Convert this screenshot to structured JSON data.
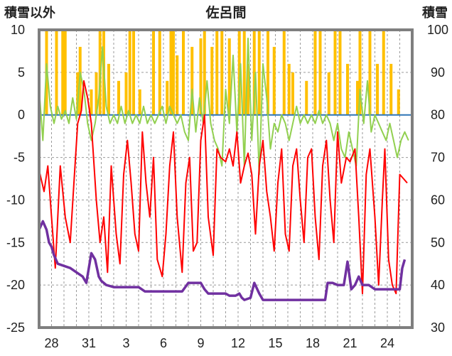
{
  "chart_data": {
    "type": "line",
    "title": "佐呂間",
    "left_axis_title": "積雪以外",
    "right_axis_title": "積雪",
    "yleft": {
      "min": -25,
      "max": 10,
      "ticks": [
        "10",
        "5",
        "0",
        "-5",
        "-10",
        "-15",
        "-20",
        "-25"
      ]
    },
    "yright": {
      "min": 30,
      "max": 100,
      "ticks": [
        "100",
        "90",
        "80",
        "70",
        "60",
        "50",
        "40",
        "30"
      ]
    },
    "x_tick_labels": [
      "28",
      "31",
      "3",
      "6",
      "9",
      "12",
      "15",
      "18",
      "21",
      "24"
    ],
    "x_ticks_day_index": [
      1,
      4,
      7,
      10,
      13,
      16,
      19,
      22,
      25,
      28
    ],
    "days": 30,
    "grid": true,
    "colors": {
      "temperature": "#ff0000",
      "wind": "#92d050",
      "precipitation": "#ffc000",
      "snow_depth": "#7030a0",
      "frame": "#7f7f7f"
    },
    "series": [
      {
        "key": "temperature",
        "axis": "left",
        "points": [
          [
            0,
            -6.5
          ],
          [
            0.4,
            -9
          ],
          [
            0.7,
            -6
          ],
          [
            1.0,
            -12
          ],
          [
            1.3,
            -18
          ],
          [
            1.7,
            -6
          ],
          [
            2.1,
            -12
          ],
          [
            2.5,
            -15
          ],
          [
            2.8,
            -8
          ],
          [
            3.1,
            -1
          ],
          [
            3.4,
            0.5
          ],
          [
            3.6,
            4
          ],
          [
            3.9,
            2
          ],
          [
            4.2,
            -1
          ],
          [
            4.6,
            -10
          ],
          [
            4.9,
            -15
          ],
          [
            5.2,
            -12
          ],
          [
            5.5,
            -18.5
          ],
          [
            5.8,
            -6
          ],
          [
            6.2,
            -14
          ],
          [
            6.5,
            -17.5
          ],
          [
            6.8,
            -7
          ],
          [
            7.1,
            -3
          ],
          [
            7.4,
            -8
          ],
          [
            7.7,
            -14
          ],
          [
            8.0,
            -16
          ],
          [
            8.3,
            -2
          ],
          [
            8.6,
            -8
          ],
          [
            8.9,
            -12
          ],
          [
            9.2,
            -5
          ],
          [
            9.5,
            -17
          ],
          [
            9.9,
            -19
          ],
          [
            10.2,
            -14
          ],
          [
            10.5,
            -6
          ],
          [
            10.8,
            -2
          ],
          [
            11.1,
            -12
          ],
          [
            11.5,
            -18.5
          ],
          [
            11.8,
            -8
          ],
          [
            12.1,
            -5
          ],
          [
            12.4,
            -16
          ],
          [
            12.7,
            -15
          ],
          [
            13.0,
            -3
          ],
          [
            13.3,
            0
          ],
          [
            13.6,
            -12
          ],
          [
            14.0,
            -16.5
          ],
          [
            14.3,
            -4
          ],
          [
            14.6,
            -5
          ],
          [
            15.0,
            -5.5
          ],
          [
            15.3,
            -4
          ],
          [
            15.6,
            -6
          ],
          [
            15.9,
            -2
          ],
          [
            16.2,
            -8
          ],
          [
            16.5,
            -6
          ],
          [
            16.8,
            -4.5
          ],
          [
            17.1,
            -7
          ],
          [
            17.4,
            -14
          ],
          [
            17.7,
            -6
          ],
          [
            18.0,
            -3
          ],
          [
            18.3,
            -9
          ],
          [
            18.6,
            -12
          ],
          [
            18.9,
            -16
          ],
          [
            19.2,
            -8
          ],
          [
            19.5,
            -4
          ],
          [
            19.8,
            -14
          ],
          [
            20.1,
            -16
          ],
          [
            20.4,
            -6
          ],
          [
            20.7,
            -4
          ],
          [
            21.0,
            -10
          ],
          [
            21.3,
            -15
          ],
          [
            21.6,
            -5
          ],
          [
            21.9,
            -4
          ],
          [
            22.2,
            -12
          ],
          [
            22.5,
            -17
          ],
          [
            22.8,
            -6
          ],
          [
            23.1,
            -3
          ],
          [
            23.4,
            -10
          ],
          [
            23.7,
            -15
          ],
          [
            24.0,
            -2
          ],
          [
            24.3,
            -8
          ],
          [
            24.7,
            -5
          ],
          [
            25.0,
            -5.5
          ],
          [
            25.4,
            -4
          ],
          [
            25.7,
            -12
          ],
          [
            26.0,
            -21
          ],
          [
            26.3,
            -7
          ],
          [
            26.6,
            -4
          ],
          [
            27.0,
            -12
          ],
          [
            27.3,
            -20
          ],
          [
            27.6,
            -10
          ],
          [
            27.8,
            -4
          ],
          [
            28.1,
            -17
          ],
          [
            28.4,
            -20
          ],
          [
            28.7,
            -21
          ],
          [
            29.0,
            -7
          ],
          [
            29.3,
            -7.5
          ],
          [
            29.6,
            -8
          ]
        ]
      },
      {
        "key": "wind",
        "axis": "left",
        "points": [
          [
            0,
            3
          ],
          [
            0.3,
            -3
          ],
          [
            0.6,
            6
          ],
          [
            0.9,
            1
          ],
          [
            1.2,
            -1
          ],
          [
            1.5,
            1
          ],
          [
            1.8,
            -0.5
          ],
          [
            2.1,
            0.5
          ],
          [
            2.4,
            -1
          ],
          [
            2.7,
            2
          ],
          [
            3.0,
            -0.5
          ],
          [
            3.3,
            5
          ],
          [
            3.6,
            3
          ],
          [
            3.9,
            -1
          ],
          [
            4.2,
            -3
          ],
          [
            4.5,
            -1
          ],
          [
            4.8,
            2
          ],
          [
            5.1,
            8
          ],
          [
            5.4,
            1
          ],
          [
            5.7,
            -1
          ],
          [
            6.0,
            0
          ],
          [
            6.3,
            -1
          ],
          [
            6.6,
            1
          ],
          [
            6.9,
            -1
          ],
          [
            7.2,
            0.5
          ],
          [
            7.5,
            -1
          ],
          [
            7.8,
            0
          ],
          [
            8.1,
            -1
          ],
          [
            8.4,
            1
          ],
          [
            8.7,
            -1
          ],
          [
            9.0,
            0
          ],
          [
            9.3,
            -1
          ],
          [
            9.6,
            0
          ],
          [
            9.9,
            1
          ],
          [
            10.2,
            -1
          ],
          [
            10.5,
            1
          ],
          [
            10.8,
            0
          ],
          [
            11.1,
            -1
          ],
          [
            11.4,
            0
          ],
          [
            11.7,
            -2
          ],
          [
            12.0,
            -3
          ],
          [
            12.3,
            3
          ],
          [
            12.6,
            -2
          ],
          [
            12.9,
            2
          ],
          [
            13.2,
            -1
          ],
          [
            13.5,
            4
          ],
          [
            13.8,
            -1
          ],
          [
            14.1,
            -3
          ],
          [
            14.4,
            -4
          ],
          [
            14.7,
            -6
          ],
          [
            15.0,
            3
          ],
          [
            15.3,
            -1
          ],
          [
            15.6,
            7
          ],
          [
            15.9,
            -2
          ],
          [
            16.2,
            6
          ],
          [
            16.5,
            -6
          ],
          [
            16.8,
            9
          ],
          [
            17.1,
            -3
          ],
          [
            17.4,
            5
          ],
          [
            17.7,
            -7
          ],
          [
            18.0,
            6
          ],
          [
            18.3,
            2
          ],
          [
            18.6,
            -4
          ],
          [
            18.9,
            -1
          ],
          [
            19.2,
            -2
          ],
          [
            19.5,
            0
          ],
          [
            19.8,
            -1
          ],
          [
            20.1,
            -3
          ],
          [
            20.4,
            -1
          ],
          [
            20.7,
            1
          ],
          [
            21.0,
            -1
          ],
          [
            21.3,
            0
          ],
          [
            21.6,
            -1
          ],
          [
            21.9,
            0
          ],
          [
            22.2,
            -1
          ],
          [
            22.5,
            0.5
          ],
          [
            22.8,
            -1
          ],
          [
            23.1,
            0
          ],
          [
            23.4,
            -1
          ],
          [
            23.7,
            -3
          ],
          [
            24.0,
            -1
          ],
          [
            24.3,
            -4
          ],
          [
            24.6,
            -5
          ],
          [
            24.9,
            -2
          ],
          [
            25.2,
            -4
          ],
          [
            25.5,
            -6
          ],
          [
            25.8,
            3
          ],
          [
            26.1,
            -1
          ],
          [
            26.4,
            4
          ],
          [
            26.7,
            -2
          ],
          [
            27.0,
            0
          ],
          [
            27.3,
            -1
          ],
          [
            27.6,
            -2
          ],
          [
            27.9,
            -3
          ],
          [
            28.2,
            -1
          ],
          [
            28.5,
            -3
          ],
          [
            28.8,
            -5
          ],
          [
            29.1,
            -3
          ],
          [
            29.4,
            -2
          ],
          [
            29.7,
            -3
          ]
        ]
      },
      {
        "key": "snow_depth",
        "axis": "right",
        "points": [
          [
            0,
            53
          ],
          [
            0.3,
            55
          ],
          [
            0.6,
            53
          ],
          [
            0.8,
            50
          ],
          [
            1.0,
            49
          ],
          [
            1.2,
            47
          ],
          [
            1.5,
            45
          ],
          [
            2.0,
            44.5
          ],
          [
            2.5,
            44
          ],
          [
            3.0,
            43
          ],
          [
            3.5,
            42
          ],
          [
            3.8,
            40.5
          ],
          [
            4.0,
            44
          ],
          [
            4.2,
            47.5
          ],
          [
            4.5,
            46
          ],
          [
            4.8,
            42
          ],
          [
            5.0,
            41
          ],
          [
            5.4,
            40
          ],
          [
            6.0,
            39.5
          ],
          [
            8.0,
            39.5
          ],
          [
            8.5,
            38.5
          ],
          [
            9.0,
            38.5
          ],
          [
            10.0,
            38.5
          ],
          [
            11.5,
            38.5
          ],
          [
            12.0,
            40.5
          ],
          [
            13.0,
            40.5
          ],
          [
            13.3,
            39
          ],
          [
            13.6,
            38
          ],
          [
            14.0,
            38
          ],
          [
            15.0,
            38
          ],
          [
            15.3,
            37.5
          ],
          [
            15.8,
            37.5
          ],
          [
            16.1,
            38
          ],
          [
            16.3,
            37
          ],
          [
            16.5,
            36.5
          ],
          [
            17.0,
            37
          ],
          [
            17.3,
            40.5
          ],
          [
            17.7,
            38
          ],
          [
            18.0,
            36.5
          ],
          [
            19.0,
            36.5
          ],
          [
            20.0,
            36.5
          ],
          [
            21.0,
            36.5
          ],
          [
            22.0,
            36.5
          ],
          [
            23.0,
            36.5
          ],
          [
            23.2,
            40.5
          ],
          [
            23.6,
            40.5
          ],
          [
            24.0,
            40
          ],
          [
            24.5,
            40
          ],
          [
            24.8,
            45.5
          ],
          [
            25.1,
            39
          ],
          [
            25.4,
            40
          ],
          [
            25.7,
            42
          ],
          [
            26.0,
            40
          ],
          [
            26.5,
            40
          ],
          [
            27.0,
            39
          ],
          [
            27.5,
            39
          ],
          [
            28.0,
            39
          ],
          [
            28.5,
            39
          ],
          [
            29.0,
            39
          ],
          [
            29.2,
            44
          ],
          [
            29.4,
            46
          ]
        ]
      },
      {
        "key": "precipitation",
        "axis": "left",
        "bars": [
          [
            0.6,
            10
          ],
          [
            1.4,
            10
          ],
          [
            1.9,
            10
          ],
          [
            2.1,
            10
          ],
          [
            3.1,
            5
          ],
          [
            3.3,
            8
          ],
          [
            4.2,
            3
          ],
          [
            4.6,
            5
          ],
          [
            4.9,
            10
          ],
          [
            5.2,
            10
          ],
          [
            5.6,
            6
          ],
          [
            6.4,
            4
          ],
          [
            7.0,
            5
          ],
          [
            7.3,
            10
          ],
          [
            7.6,
            10
          ],
          [
            8.1,
            3
          ],
          [
            9.2,
            10
          ],
          [
            9.7,
            10
          ],
          [
            10.3,
            4
          ],
          [
            10.6,
            10
          ],
          [
            10.8,
            10
          ],
          [
            11.1,
            7
          ],
          [
            11.6,
            10
          ],
          [
            12.3,
            8
          ],
          [
            13.0,
            9
          ],
          [
            13.3,
            10
          ],
          [
            13.9,
            8
          ],
          [
            14.3,
            10
          ],
          [
            14.7,
            10
          ],
          [
            15.3,
            9
          ],
          [
            16.1,
            10
          ],
          [
            16.5,
            10
          ],
          [
            16.8,
            6
          ],
          [
            17.3,
            10
          ],
          [
            17.7,
            10
          ],
          [
            18.4,
            10
          ],
          [
            18.9,
            8
          ],
          [
            19.7,
            10
          ],
          [
            20.1,
            6
          ],
          [
            20.4,
            5
          ],
          [
            21.5,
            4
          ],
          [
            22.2,
            10
          ],
          [
            22.6,
            10
          ],
          [
            23.3,
            5
          ],
          [
            23.8,
            10
          ],
          [
            24.2,
            10
          ],
          [
            24.8,
            6
          ],
          [
            25.6,
            4
          ],
          [
            25.8,
            10
          ],
          [
            26.6,
            10
          ],
          [
            27.2,
            6
          ],
          [
            27.7,
            10
          ],
          [
            28.3,
            6
          ],
          [
            28.9,
            3
          ]
        ]
      }
    ]
  }
}
